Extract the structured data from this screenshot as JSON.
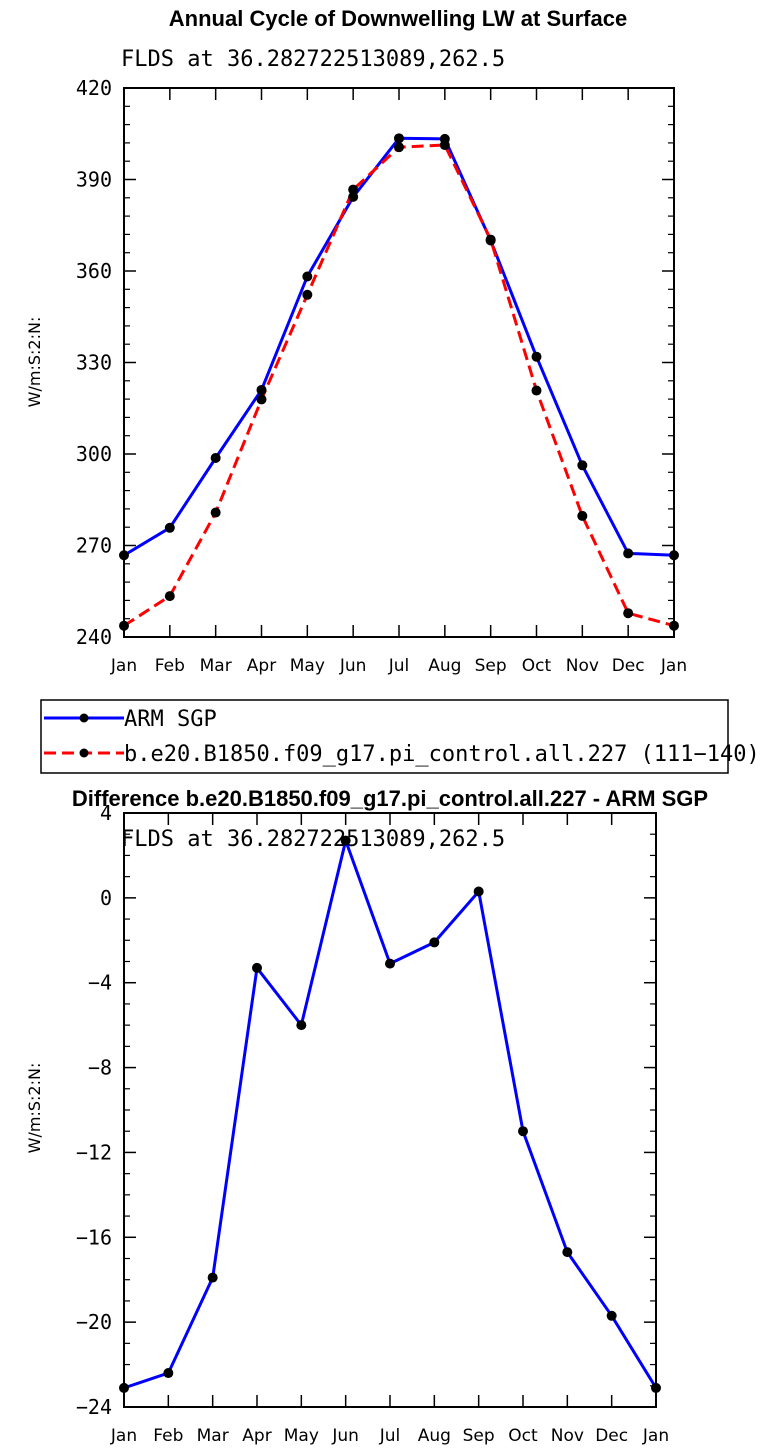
{
  "chart_data": [
    {
      "type": "line",
      "title": "Annual Cycle of Downwelling LW at Surface",
      "subtitle": "FLDS at 36.282722513089,262.5",
      "ylabel": "W/m:S:2:N:",
      "xlabel": "",
      "ylim": [
        240,
        420
      ],
      "yticks": [
        240,
        270,
        300,
        330,
        360,
        390,
        420
      ],
      "categories": [
        "Jan",
        "Feb",
        "Mar",
        "Apr",
        "May",
        "Jun",
        "Jul",
        "Aug",
        "Sep",
        "Oct",
        "Nov",
        "Dec",
        "Jan"
      ],
      "series": [
        {
          "name": "ARM SGP",
          "color": "#0000ff",
          "style": "solid",
          "values": [
            266.8,
            275.8,
            298.7,
            321.0,
            358.2,
            384.3,
            403.5,
            403.3,
            370.0,
            331.9,
            296.3,
            267.4,
            266.8
          ]
        },
        {
          "name": "b.e20.B1850.f09_g17.pi_control.all.227 (111−140)",
          "color": "#ff0000",
          "style": "dashed",
          "values": [
            243.7,
            253.4,
            280.8,
            317.9,
            352.2,
            386.7,
            400.6,
            401.3,
            370.3,
            320.8,
            279.7,
            247.8,
            243.7
          ]
        }
      ],
      "legend": {
        "position": "below",
        "entries": [
          "ARM SGP",
          "b.e20.B1850.f09_g17.pi_control.all.227 (111−140)"
        ]
      }
    },
    {
      "type": "line",
      "title": "Difference b.e20.B1850.f09_g17.pi_control.all.227 - ARM SGP",
      "subtitle": "FLDS at 36.282722513089,262.5",
      "ylabel": "W/m:S:2:N:",
      "xlabel": "",
      "ylim": [
        -24,
        4
      ],
      "yticks": [
        -24,
        -20,
        -16,
        -12,
        -8,
        -4,
        0,
        4
      ],
      "ytick_labels": [
        "−24",
        "−20",
        "−16",
        "−12",
        "−8",
        "−4",
        "0",
        "4"
      ],
      "categories": [
        "Jan",
        "Feb",
        "Mar",
        "Apr",
        "May",
        "Jun",
        "Jul",
        "Aug",
        "Sep",
        "Oct",
        "Nov",
        "Dec",
        "Jan"
      ],
      "series": [
        {
          "name": "Difference",
          "color": "#0000ff",
          "style": "solid",
          "values": [
            -23.1,
            -22.4,
            -17.9,
            -3.3,
            -6.0,
            2.7,
            -3.1,
            -2.1,
            0.3,
            -11.0,
            -16.7,
            -19.7,
            -23.1
          ]
        }
      ]
    }
  ]
}
